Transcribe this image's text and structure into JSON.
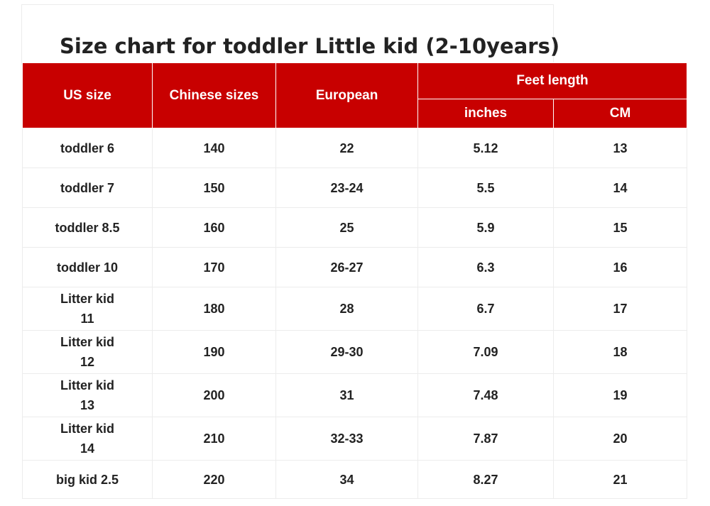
{
  "title": "Size chart for toddler Little kid (2-10years)",
  "colors": {
    "header_bg": "#c80000",
    "header_text": "#ffffff",
    "body_text": "#222222"
  },
  "table": {
    "headers": {
      "us_size": "US size",
      "chinese_sizes": "Chinese sizes",
      "european": "European",
      "feet_length": "Feet length",
      "inches": "inches",
      "cm": "CM"
    },
    "rows": [
      {
        "us": "toddler 6",
        "chinese": "140",
        "european": "22",
        "inches": "5.12",
        "cm": "13"
      },
      {
        "us": "toddler 7",
        "chinese": "150",
        "european": "23-24",
        "inches": "5.5",
        "cm": "14"
      },
      {
        "us": "toddler 8.5",
        "chinese": "160",
        "european": "25",
        "inches": "5.9",
        "cm": "15"
      },
      {
        "us": "toddler 10",
        "chinese": "170",
        "european": "26-27",
        "inches": "6.3",
        "cm": "16"
      },
      {
        "us": "Litter kid 11",
        "chinese": "180",
        "european": "28",
        "inches": "6.7",
        "cm": "17"
      },
      {
        "us": "Litter kid 12",
        "chinese": "190",
        "european": "29-30",
        "inches": "7.09",
        "cm": "18"
      },
      {
        "us": "Litter kid 13",
        "chinese": "200",
        "european": "31",
        "inches": "7.48",
        "cm": "19"
      },
      {
        "us": "Litter kid 14",
        "chinese": "210",
        "european": "32-33",
        "inches": "7.87",
        "cm": "20"
      },
      {
        "us": "big kid 2.5",
        "chinese": "220",
        "european": "34",
        "inches": "8.27",
        "cm": "21"
      }
    ]
  }
}
